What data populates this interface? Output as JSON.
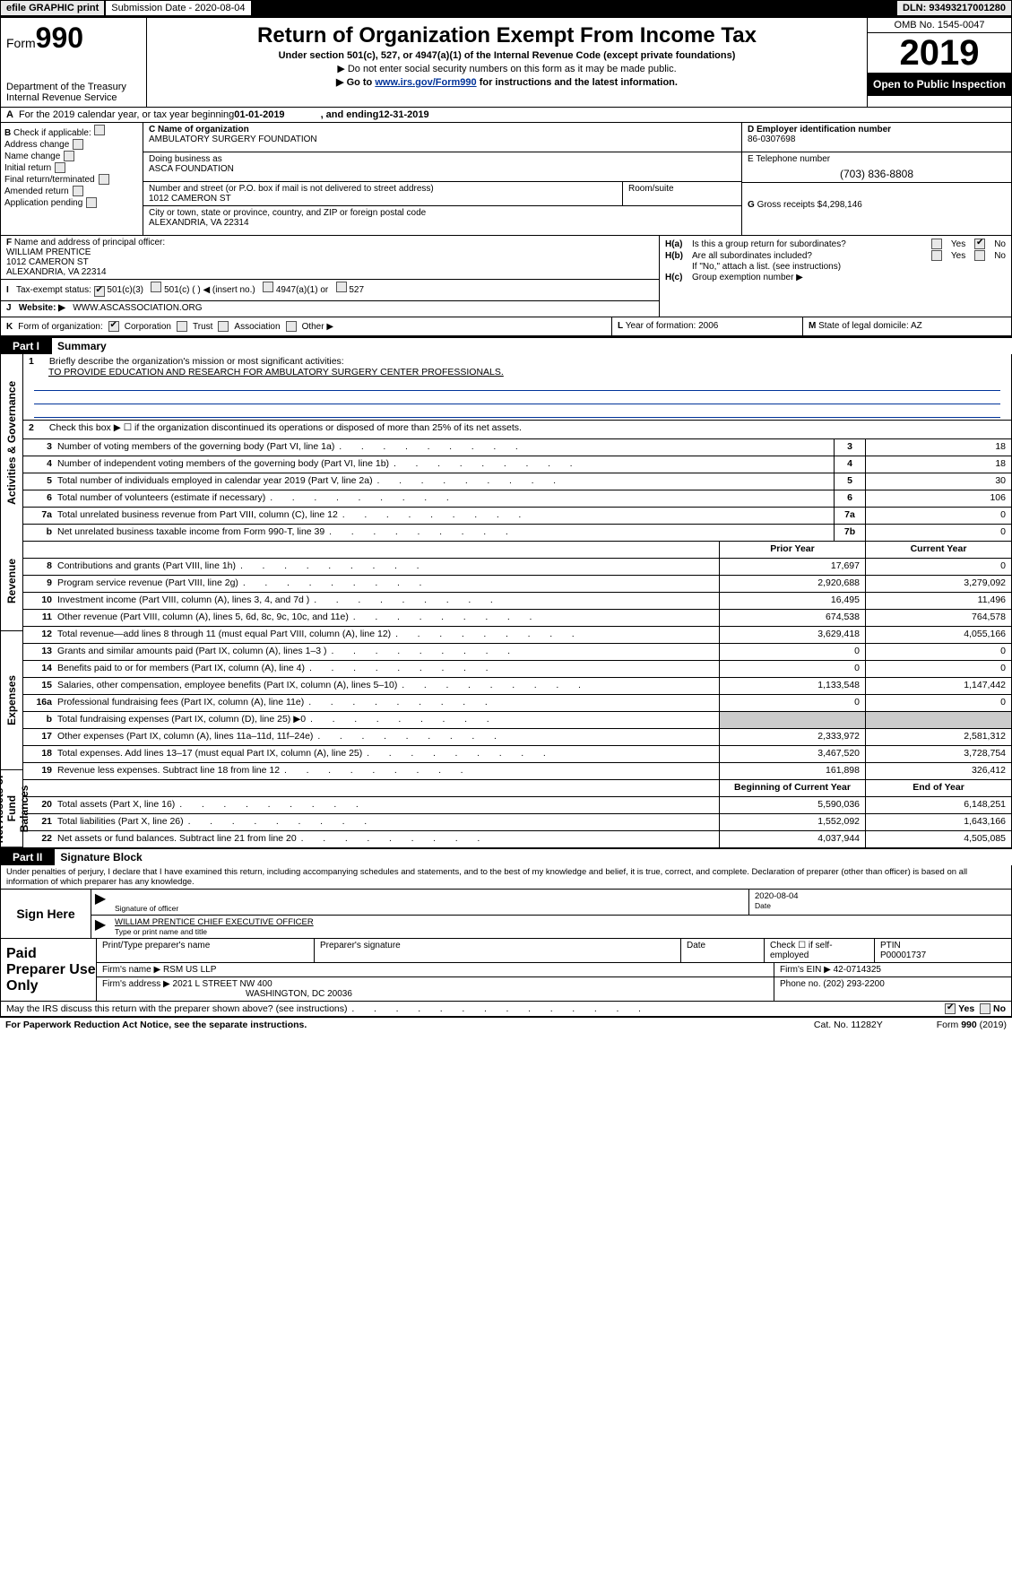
{
  "topbar": {
    "efile": "efile GRAPHIC print",
    "sub_label": "Submission Date - 2020-08-04",
    "dln": "DLN: 93493217001280"
  },
  "header": {
    "form_prefix": "Form",
    "form_num": "990",
    "dept": "Department of the Treasury",
    "irs": "Internal Revenue Service",
    "title": "Return of Organization Exempt From Income Tax",
    "subtitle": "Under section 501(c), 527, or 4947(a)(1) of the Internal Revenue Code (except private foundations)",
    "note1": "▶ Do not enter social security numbers on this form as it may be made public.",
    "note2_pre": "▶ Go to ",
    "note2_link": "www.irs.gov/Form990",
    "note2_post": " for instructions and the latest information.",
    "omb": "OMB No. 1545-0047",
    "year": "2019",
    "open": "Open to Public Inspection"
  },
  "row_a": {
    "label": "A",
    "text_pre": "For the 2019 calendar year, or tax year beginning ",
    "begin": "01-01-2019",
    "mid": ", and ending ",
    "end": "12-31-2019"
  },
  "col_b": {
    "label": "B",
    "intro": "Check if applicable:",
    "items": [
      "Address change",
      "Name change",
      "Initial return",
      "Final return/terminated",
      "Amended return",
      "Application pending"
    ]
  },
  "col_c": {
    "label_name": "C Name of organization",
    "name": "AMBULATORY SURGERY FOUNDATION",
    "dba_label": "Doing business as",
    "dba": "ASCA FOUNDATION",
    "addr_label": "Number and street (or P.O. box if mail is not delivered to street address)",
    "room_label": "Room/suite",
    "street": "1012 CAMERON ST",
    "city_label": "City or town, state or province, country, and ZIP or foreign postal code",
    "city": "ALEXANDRIA, VA  22314"
  },
  "col_d": {
    "label": "D Employer identification number",
    "val": "86-0307698"
  },
  "col_e": {
    "label": "E Telephone number",
    "val": "(703) 836-8808"
  },
  "col_g": {
    "label": "G",
    "text": "Gross receipts $",
    "val": "4,298,146"
  },
  "col_f": {
    "label": "F",
    "text": "Name and address of principal officer:",
    "name": "WILLIAM PRENTICE",
    "street": "1012 CAMERON ST",
    "city": "ALEXANDRIA, VA  22314"
  },
  "col_h": {
    "a_label": "H(a)",
    "a_text": "Is this a group return for subordinates?",
    "b_label": "H(b)",
    "b_text": "Are all subordinates included?",
    "b_note": "If \"No,\" attach a list. (see instructions)",
    "c_label": "H(c)",
    "c_text": "Group exemption number ▶",
    "yes": "Yes",
    "no": "No"
  },
  "row_i": {
    "label": "I",
    "text": "Tax-exempt status:",
    "opts": [
      "501(c)(3)",
      "501(c) (  ) ◀ (insert no.)",
      "4947(a)(1) or",
      "527"
    ]
  },
  "row_j": {
    "label": "J",
    "text": "Website: ▶",
    "val": "WWW.ASCASSOCIATION.ORG"
  },
  "row_k": {
    "label": "K",
    "text": "Form of organization:",
    "opts": [
      "Corporation",
      "Trust",
      "Association",
      "Other ▶"
    ]
  },
  "row_l": {
    "label": "L",
    "text": "Year of formation:",
    "val": "2006"
  },
  "row_m": {
    "label": "M",
    "text": "State of legal domicile:",
    "val": "AZ"
  },
  "part1": {
    "header": "Part I",
    "title": "Summary"
  },
  "sidebars": {
    "gov": "Activities & Governance",
    "rev": "Revenue",
    "exp": "Expenses",
    "net": "Net Assets or Fund Balances"
  },
  "summary": {
    "l1_num": "1",
    "l1": "Briefly describe the organization's mission or most significant activities:",
    "l1_val": "TO PROVIDE EDUCATION AND RESEARCH FOR AMBULATORY SURGERY CENTER PROFESSIONALS.",
    "l2_num": "2",
    "l2": "Check this box ▶ ☐ if the organization discontinued its operations or disposed of more than 25% of its net assets.",
    "rows_gov": [
      {
        "n": "3",
        "d": "Number of voting members of the governing body (Part VI, line 1a)",
        "box": "3",
        "v": "18"
      },
      {
        "n": "4",
        "d": "Number of independent voting members of the governing body (Part VI, line 1b)",
        "box": "4",
        "v": "18"
      },
      {
        "n": "5",
        "d": "Total number of individuals employed in calendar year 2019 (Part V, line 2a)",
        "box": "5",
        "v": "30"
      },
      {
        "n": "6",
        "d": "Total number of volunteers (estimate if necessary)",
        "box": "6",
        "v": "106"
      },
      {
        "n": "7a",
        "d": "Total unrelated business revenue from Part VIII, column (C), line 12",
        "box": "7a",
        "v": "0"
      },
      {
        "n": "b",
        "d": "Net unrelated business taxable income from Form 990-T, line 39",
        "box": "7b",
        "v": "0"
      }
    ],
    "col_py": "Prior Year",
    "col_cy": "Current Year",
    "rows_rev": [
      {
        "n": "8",
        "d": "Contributions and grants (Part VIII, line 1h)",
        "py": "17,697",
        "cy": "0"
      },
      {
        "n": "9",
        "d": "Program service revenue (Part VIII, line 2g)",
        "py": "2,920,688",
        "cy": "3,279,092"
      },
      {
        "n": "10",
        "d": "Investment income (Part VIII, column (A), lines 3, 4, and 7d )",
        "py": "16,495",
        "cy": "11,496"
      },
      {
        "n": "11",
        "d": "Other revenue (Part VIII, column (A), lines 5, 6d, 8c, 9c, 10c, and 11e)",
        "py": "674,538",
        "cy": "764,578"
      },
      {
        "n": "12",
        "d": "Total revenue—add lines 8 through 11 (must equal Part VIII, column (A), line 12)",
        "py": "3,629,418",
        "cy": "4,055,166"
      }
    ],
    "rows_exp": [
      {
        "n": "13",
        "d": "Grants and similar amounts paid (Part IX, column (A), lines 1–3 )",
        "py": "0",
        "cy": "0"
      },
      {
        "n": "14",
        "d": "Benefits paid to or for members (Part IX, column (A), line 4)",
        "py": "0",
        "cy": "0"
      },
      {
        "n": "15",
        "d": "Salaries, other compensation, employee benefits (Part IX, column (A), lines 5–10)",
        "py": "1,133,548",
        "cy": "1,147,442"
      },
      {
        "n": "16a",
        "d": "Professional fundraising fees (Part IX, column (A), line 11e)",
        "py": "0",
        "cy": "0"
      },
      {
        "n": "b",
        "d": "Total fundraising expenses (Part IX, column (D), line 25) ▶0",
        "py": "",
        "cy": "",
        "shaded": true
      },
      {
        "n": "17",
        "d": "Other expenses (Part IX, column (A), lines 11a–11d, 11f–24e)",
        "py": "2,333,972",
        "cy": "2,581,312"
      },
      {
        "n": "18",
        "d": "Total expenses. Add lines 13–17 (must equal Part IX, column (A), line 25)",
        "py": "3,467,520",
        "cy": "3,728,754"
      },
      {
        "n": "19",
        "d": "Revenue less expenses. Subtract line 18 from line 12",
        "py": "161,898",
        "cy": "326,412"
      }
    ],
    "col_bcy": "Beginning of Current Year",
    "col_eoy": "End of Year",
    "rows_net": [
      {
        "n": "20",
        "d": "Total assets (Part X, line 16)",
        "py": "5,590,036",
        "cy": "6,148,251"
      },
      {
        "n": "21",
        "d": "Total liabilities (Part X, line 26)",
        "py": "1,552,092",
        "cy": "1,643,166"
      },
      {
        "n": "22",
        "d": "Net assets or fund balances. Subtract line 21 from line 20",
        "py": "4,037,944",
        "cy": "4,505,085"
      }
    ]
  },
  "part2": {
    "header": "Part II",
    "title": "Signature Block"
  },
  "perjury": "Under penalties of perjury, I declare that I have examined this return, including accompanying schedules and statements, and to the best of my knowledge and belief, it is true, correct, and complete. Declaration of preparer (other than officer) is based on all information of which preparer has any knowledge.",
  "sign": {
    "label": "Sign Here",
    "sig_officer": "Signature of officer",
    "date_label": "Date",
    "date_val": "2020-08-04",
    "name": "WILLIAM PRENTICE  CHIEF EXECUTIVE OFFICER",
    "name_label": "Type or print name and title"
  },
  "paid": {
    "label": "Paid Preparer Use Only",
    "h1": "Print/Type preparer's name",
    "h2": "Preparer's signature",
    "h3": "Date",
    "h4_pre": "Check ☐ if self-employed",
    "h5": "PTIN",
    "ptin": "P00001737",
    "firm_name_l": "Firm's name    ▶",
    "firm_name": "RSM US LLP",
    "firm_ein_l": "Firm's EIN ▶",
    "firm_ein": "42-0714325",
    "firm_addr_l": "Firm's address ▶",
    "firm_addr1": "2021 L STREET NW 400",
    "firm_addr2": "WASHINGTON, DC  20036",
    "phone_l": "Phone no.",
    "phone": "(202) 293-2200"
  },
  "footer": {
    "discuss": "May the IRS discuss this return with the preparer shown above? (see instructions)",
    "yes": "Yes",
    "no": "No",
    "pra": "For Paperwork Reduction Act Notice, see the separate instructions.",
    "cat": "Cat. No. 11282Y",
    "form": "Form 990 (2019)"
  }
}
